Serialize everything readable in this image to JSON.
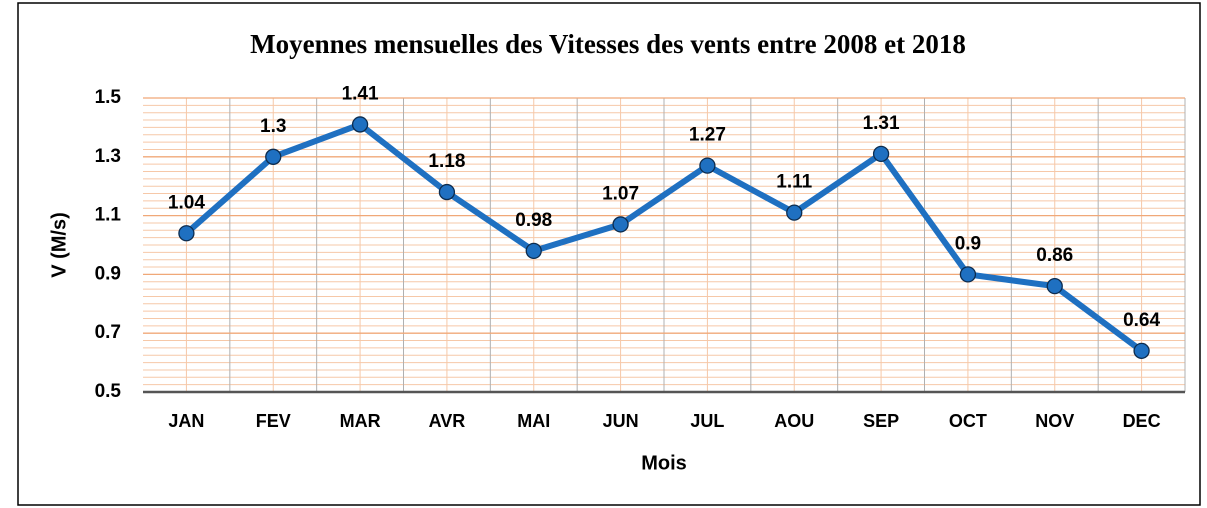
{
  "chart_data": {
    "type": "line",
    "title": "Moyennes mensuelles des Vitesses des vents entre 2008 et 2018",
    "x_label": "Mois",
    "y_label": "V (M/s)",
    "categories": [
      "JAN",
      "FEV",
      "MAR",
      "AVR",
      "MAI",
      "JUN",
      "JUL",
      "AOU",
      "SEP",
      "OCT",
      "NOV",
      "DEC"
    ],
    "values": [
      1.04,
      1.3,
      1.41,
      1.18,
      0.98,
      1.07,
      1.27,
      1.11,
      1.31,
      0.9,
      0.86,
      0.64
    ],
    "color": "#1f70c1",
    "ylim": [
      0.5,
      1.5
    ],
    "yticks": [
      0.5,
      0.7,
      0.9,
      1.1,
      1.3,
      1.5
    ],
    "grid": true
  }
}
